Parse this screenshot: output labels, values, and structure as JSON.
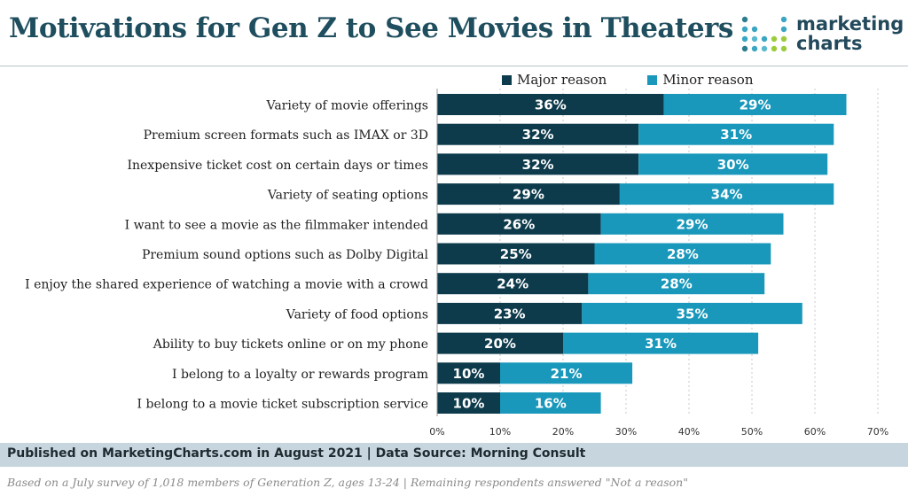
{
  "header": {
    "title": "Motivations for Gen Z to See Movies in Theaters"
  },
  "logo": {
    "line1": "marketing",
    "line2": "charts"
  },
  "chart_data": {
    "type": "bar",
    "orientation": "horizontal",
    "stacked": true,
    "title": "Motivations for Gen Z to See Movies in Theaters",
    "categories": [
      "Variety of movie offerings",
      "Premium screen formats such as IMAX or 3D",
      "Inexpensive ticket cost on certain days or times",
      "Variety of seating options",
      "I want to see a movie as the filmmaker intended",
      "Premium sound options such as Dolby Digital",
      "I enjoy the shared experience of watching a movie with a crowd",
      "Variety of food options",
      "Ability to buy tickets online or on my phone",
      "I belong to a loyalty or rewards program",
      "I belong to a movie ticket subscription service"
    ],
    "series": [
      {
        "name": "Major reason",
        "color": "#0d3b4c",
        "values": [
          36,
          32,
          32,
          29,
          26,
          25,
          24,
          23,
          20,
          10,
          10
        ]
      },
      {
        "name": "Minor reason",
        "color": "#1998bb",
        "values": [
          29,
          31,
          30,
          34,
          29,
          28,
          28,
          35,
          31,
          21,
          16
        ]
      }
    ],
    "xlim": [
      0,
      70
    ],
    "ticks": [
      0,
      10,
      20,
      30,
      40,
      50,
      60,
      70
    ],
    "tick_labels": [
      "0%",
      "10%",
      "20%",
      "30%",
      "40%",
      "50%",
      "60%",
      "70%"
    ],
    "value_suffix": "%",
    "grid": "vertical-dotted",
    "legend_position": "top"
  },
  "footer": {
    "published": "Published on MarketingCharts.com in August 2021 | Data Source: Morning Consult",
    "note": "Based on a July survey of 1,018 members of Generation Z, ages 13-24 | Remaining respondents answered \"Not a reason\""
  }
}
